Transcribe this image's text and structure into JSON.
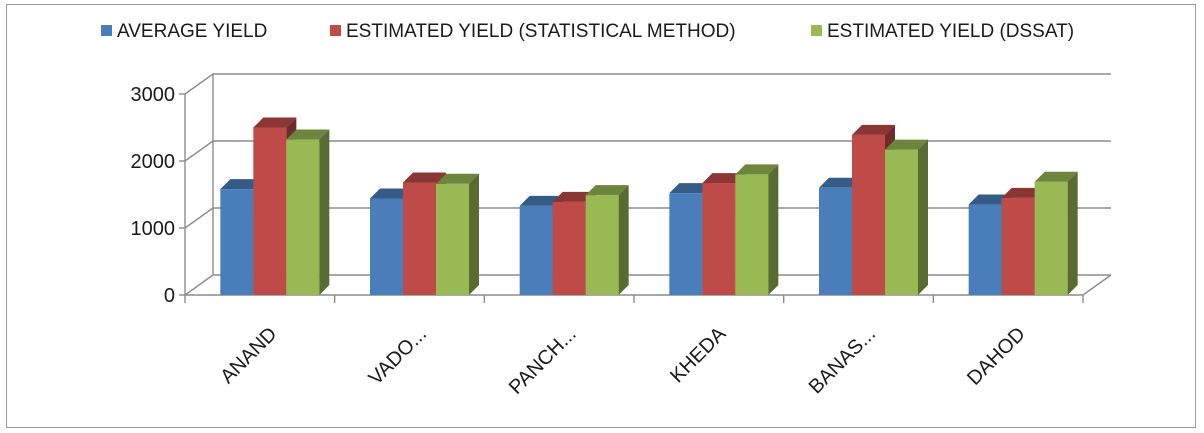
{
  "chart_data": {
    "type": "bar",
    "title": "",
    "xlabel": "",
    "ylabel": "",
    "categories": [
      "ANAND",
      "VADO...",
      "PANCH...",
      "KHEDA",
      "BANAS...",
      "DAHOD"
    ],
    "ylim": [
      0,
      3000
    ],
    "yticks": [
      0,
      1000,
      2000,
      3000
    ],
    "grid": true,
    "legend_position": "top",
    "style": "3d-clustered-column",
    "series": [
      {
        "name": "AVERAGE YIELD",
        "color": "#4a7ebb",
        "values": [
          1580,
          1440,
          1330,
          1520,
          1600,
          1350
        ]
      },
      {
        "name": "ESTIMATED YIELD (STATISTICAL METHOD)",
        "color": "#be4b48",
        "values": [
          2500,
          1680,
          1390,
          1670,
          2390,
          1450
        ]
      },
      {
        "name": "ESTIMATED YIELD (DSSAT)",
        "color": "#98b954",
        "values": [
          2320,
          1660,
          1490,
          1800,
          2170,
          1690
        ]
      }
    ]
  }
}
